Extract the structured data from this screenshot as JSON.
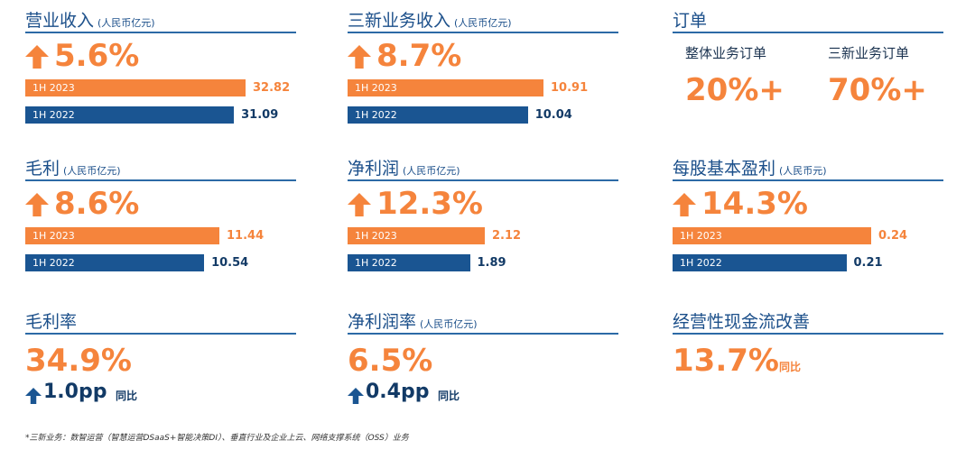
{
  "panels": [
    {
      "title": "营业收入",
      "unit": "(人民币亿元)",
      "change": "5.6%",
      "bars": [
        {
          "label": "1H 2023",
          "value": 32.82
        },
        {
          "label": "1H 2022",
          "value": 31.09
        }
      ]
    },
    {
      "title": "三新业务收入",
      "unit": "(人民币亿元)",
      "change": "8.7%",
      "bars": [
        {
          "label": "1H 2023",
          "value": 10.91
        },
        {
          "label": "1H 2022",
          "value": 10.04
        }
      ]
    },
    {
      "title": "订单",
      "items": [
        {
          "label": "整体业务订单",
          "value": "20%+"
        },
        {
          "label": "三新业务订单",
          "value": "70%+"
        }
      ]
    },
    {
      "title": "毛利",
      "unit": "(人民币亿元)",
      "change": "8.6%",
      "bars": [
        {
          "label": "1H 2023",
          "value": 11.44
        },
        {
          "label": "1H 2022",
          "value": 10.54
        }
      ]
    },
    {
      "title": "净利润",
      "unit": "(人民币亿元)",
      "change": "12.3%",
      "bars": [
        {
          "label": "1H 2023",
          "value": 2.12
        },
        {
          "label": "1H 2022",
          "value": 1.89
        }
      ]
    },
    {
      "title": "每股基本盈利",
      "unit": "(人民币元)",
      "change": "14.3%",
      "bars": [
        {
          "label": "1H 2023",
          "value": 0.24
        },
        {
          "label": "1H 2022",
          "value": 0.21
        }
      ]
    },
    {
      "title": "毛利率",
      "value": "34.9%",
      "change": "1.0pp",
      "note": "同比"
    },
    {
      "title": "净利润率",
      "unit": "(人民币亿元)",
      "value": "6.5%",
      "change": "0.4pp",
      "note": "同比"
    },
    {
      "title": "经营性现金流改善",
      "value": "13.7%",
      "note": "同比"
    }
  ],
  "footnote": "*三新业务：数智运营（智慧运营DSaaS+智能决策DI）、垂直行业及企业上云、网络支撑系统（OSS）业务"
}
